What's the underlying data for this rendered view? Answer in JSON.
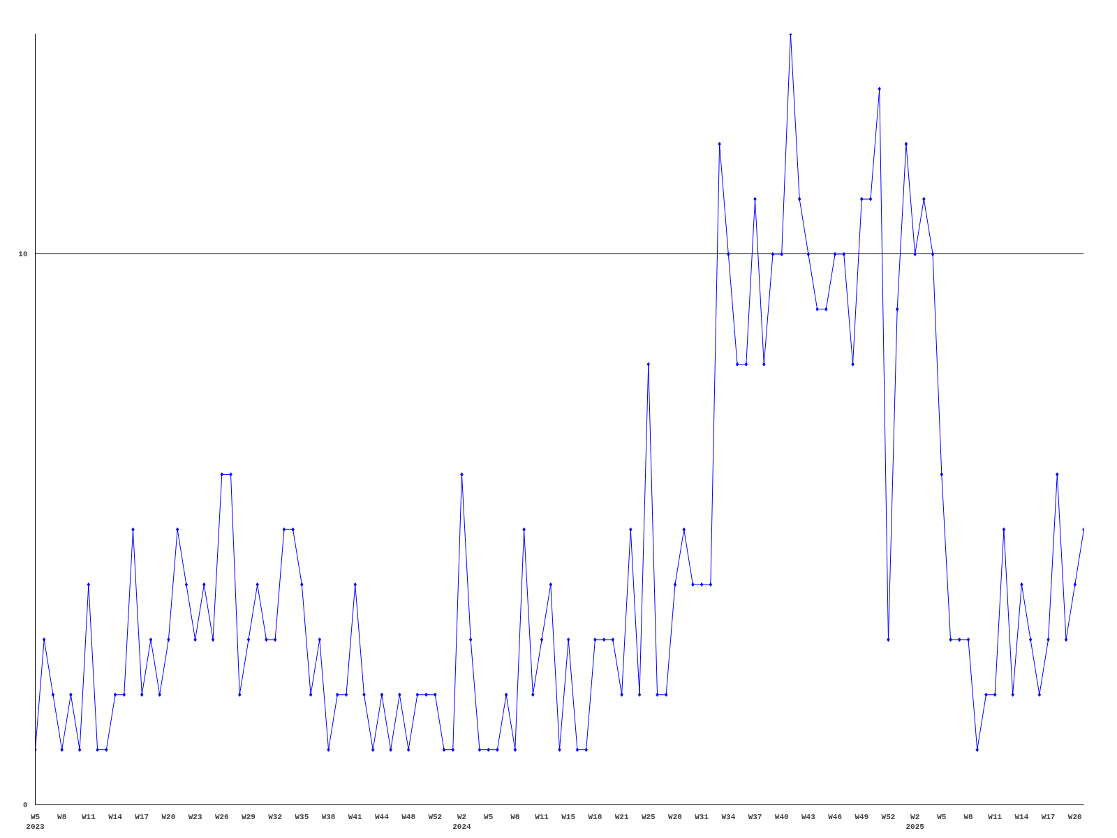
{
  "chart_data": {
    "type": "line",
    "categories": [
      "W5\n2023",
      null,
      null,
      "W8",
      null,
      null,
      "W11",
      null,
      null,
      "W14",
      null,
      null,
      "W17",
      null,
      null,
      "W20",
      null,
      null,
      "W23",
      null,
      null,
      "W26",
      null,
      null,
      "W29",
      null,
      null,
      "W32",
      null,
      null,
      "W35",
      null,
      null,
      "W38",
      null,
      null,
      "W41",
      null,
      null,
      "W44",
      null,
      null,
      "W48",
      null,
      null,
      "W52",
      null,
      null,
      "W2\n2024",
      null,
      null,
      "W5",
      null,
      null,
      "W8",
      null,
      null,
      "W11",
      null,
      null,
      "W15",
      null,
      null,
      "W18",
      null,
      null,
      "W21",
      null,
      null,
      "W25",
      null,
      null,
      "W28",
      null,
      null,
      "W31",
      null,
      null,
      "W34",
      null,
      null,
      "W37",
      null,
      null,
      "W40",
      null,
      null,
      "W43",
      null,
      null,
      "W46",
      null,
      null,
      "W49",
      null,
      null,
      "W52",
      null,
      null,
      "W2\n2025",
      null,
      null,
      "W5",
      null,
      null,
      "W8",
      null,
      null,
      "W11",
      null,
      null,
      "W14",
      null,
      null,
      "W17",
      null,
      null,
      "W20",
      null
    ],
    "values": [
      1,
      3,
      2,
      1,
      2,
      1,
      4,
      1,
      1,
      2,
      2,
      5,
      2,
      3,
      2,
      3,
      5,
      4,
      3,
      4,
      3,
      6,
      6,
      2,
      3,
      4,
      3,
      3,
      5,
      5,
      4,
      2,
      3,
      1,
      2,
      2,
      4,
      2,
      1,
      2,
      1,
      2,
      1,
      2,
      2,
      2,
      1,
      1,
      6,
      3,
      1,
      1,
      1,
      2,
      1,
      5,
      2,
      3,
      4,
      1,
      3,
      1,
      1,
      3,
      3,
      3,
      2,
      5,
      2,
      8,
      2,
      2,
      4,
      5,
      4,
      4,
      4,
      12,
      10,
      8,
      8,
      11,
      8,
      10,
      10,
      14,
      11,
      10,
      9,
      9,
      10,
      10,
      8,
      11,
      11,
      13,
      3,
      9,
      12,
      10,
      11,
      10,
      6,
      3,
      3,
      3,
      1,
      2,
      2,
      5,
      2,
      4,
      3,
      2,
      3,
      6,
      3,
      4,
      5
    ],
    "color": "#0000ff",
    "marker": "diamond",
    "ylim": [
      0,
      14
    ],
    "yticks": [
      0,
      10
    ],
    "grid": "y"
  }
}
